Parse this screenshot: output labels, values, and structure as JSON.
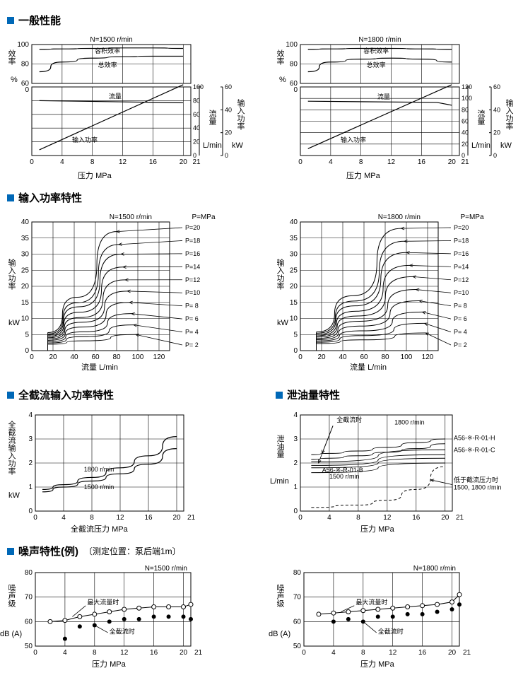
{
  "sections": {
    "general": {
      "title": "一般性能"
    },
    "input_power": {
      "title": "输入功率特性"
    },
    "full_cutoff": {
      "title": "全截流输入功率特性"
    },
    "leakage": {
      "title": "泄油量特性"
    },
    "noise": {
      "title": "噪声特性(例)",
      "note": "〔测定位置：泵后端1m〕"
    }
  },
  "general_chart": {
    "rpm_left": "N=1500 r/min",
    "rpm_right": "N=1800 r/min",
    "y1_label_v": "效率",
    "y1_unit": "%",
    "y1_ticks": [
      0,
      60,
      80,
      100
    ],
    "y2_label_v": "流量",
    "y2_unit": "L/min",
    "y2_ticks_left": [
      0,
      20,
      40,
      60,
      80,
      100
    ],
    "y2_ticks_right": [
      0,
      20,
      40,
      60,
      80,
      100,
      120
    ],
    "y3_label_v": "输入功率",
    "y3_unit": "kW",
    "y3_ticks": [
      0,
      20,
      40,
      60
    ],
    "x_label": "压力",
    "x_unit": "MPa",
    "x_max_note": "21",
    "x_ticks": [
      0,
      4,
      8,
      12,
      16,
      20
    ],
    "curve_labels": {
      "vol_eff": "容积效率",
      "total_eff": "总效率",
      "flow": "流量",
      "input_power": "输入功率"
    },
    "eff_left": {
      "vol": [
        [
          1,
          95
        ],
        [
          4,
          95.5
        ],
        [
          8,
          96
        ],
        [
          12,
          96.5
        ],
        [
          16,
          96.5
        ],
        [
          20,
          96
        ]
      ],
      "tot": [
        [
          1,
          72
        ],
        [
          4,
          82
        ],
        [
          8,
          86
        ],
        [
          12,
          87.5
        ],
        [
          16,
          88
        ],
        [
          20,
          88
        ]
      ]
    },
    "flow_left": [
      [
        1,
        80
      ],
      [
        20,
        77
      ]
    ],
    "power_left": [
      [
        1,
        5
      ],
      [
        20,
        62
      ]
    ],
    "eff_right": {
      "vol": [
        [
          1,
          95
        ],
        [
          4,
          95.5
        ],
        [
          8,
          96
        ],
        [
          12,
          96
        ],
        [
          16,
          95.5
        ],
        [
          20,
          95
        ]
      ],
      "tot": [
        [
          1,
          72
        ],
        [
          4,
          82
        ],
        [
          8,
          85
        ],
        [
          12,
          86
        ],
        [
          16,
          85
        ],
        [
          20,
          82
        ]
      ]
    },
    "flow_right": [
      [
        1,
        95
      ],
      [
        18,
        93
      ],
      [
        20,
        88
      ]
    ],
    "power_right": [
      [
        1,
        6
      ],
      [
        20,
        62
      ]
    ]
  },
  "input_power_chart": {
    "rpm_left": "N=1500 r/min",
    "rpm_right": "N=1800 r/min",
    "p_mpa": "P=MPa",
    "y_label_v": "输入功率",
    "y_unit": "kW",
    "y_ticks": [
      0,
      5,
      10,
      15,
      20,
      25,
      30,
      35,
      40
    ],
    "x_label": "流量",
    "x_unit": "L/min",
    "x_ticks": [
      0,
      20,
      40,
      60,
      80,
      100,
      120
    ],
    "p_series_labels": [
      "P=20",
      "P=18",
      "P=16",
      "P=14",
      "P=12",
      "P=10",
      "P= 8",
      "P= 6",
      "P= 4",
      "P= 2"
    ],
    "p_series_left": [
      [
        [
          15,
          5.6
        ],
        [
          80,
          37
        ]
      ],
      [
        [
          15,
          5.2
        ],
        [
          82,
          33
        ]
      ],
      [
        [
          15,
          4.8
        ],
        [
          84,
          30
        ]
      ],
      [
        [
          15,
          4.4
        ],
        [
          86,
          26
        ]
      ],
      [
        [
          15,
          4.0
        ],
        [
          88,
          22
        ]
      ],
      [
        [
          15,
          3.6
        ],
        [
          90,
          18.5
        ]
      ],
      [
        [
          15,
          3.2
        ],
        [
          92,
          15
        ]
      ],
      [
        [
          15,
          2.8
        ],
        [
          94,
          11.5
        ]
      ],
      [
        [
          15,
          2.4
        ],
        [
          96,
          8
        ]
      ],
      [
        [
          15,
          2.0
        ],
        [
          98,
          5
        ]
      ]
    ],
    "p_series_right": [
      [
        [
          15,
          5.8
        ],
        [
          95,
          38
        ]
      ],
      [
        [
          15,
          5.4
        ],
        [
          98,
          34
        ]
      ],
      [
        [
          15,
          5.0
        ],
        [
          100,
          30.5
        ]
      ],
      [
        [
          15,
          4.6
        ],
        [
          103,
          26.5
        ]
      ],
      [
        [
          15,
          4.2
        ],
        [
          106,
          23
        ]
      ],
      [
        [
          15,
          3.8
        ],
        [
          109,
          19
        ]
      ],
      [
        [
          15,
          3.4
        ],
        [
          112,
          15.5
        ]
      ],
      [
        [
          15,
          3.0
        ],
        [
          115,
          12
        ]
      ],
      [
        [
          15,
          2.6
        ],
        [
          117,
          8.5
        ]
      ],
      [
        [
          15,
          2.2
        ],
        [
          118,
          5.5
        ]
      ]
    ]
  },
  "full_cutoff_chart": {
    "y_label_v": "全截流输入功率",
    "y_unit": "kW",
    "y_ticks": [
      0,
      1,
      2,
      3,
      4
    ],
    "x_label": "全截流压力",
    "x_unit": "MPa",
    "x_ticks": [
      0,
      4,
      8,
      12,
      16,
      20
    ],
    "x_max_note": "21",
    "curve_labels": {
      "c1": "1800 r/min",
      "c2": "1500 r/min"
    },
    "c1": [
      [
        1,
        0.9
      ],
      [
        4,
        1.1
      ],
      [
        8,
        1.4
      ],
      [
        12,
        1.8
      ],
      [
        16,
        2.3
      ],
      [
        20,
        3.1
      ]
    ],
    "c2": [
      [
        1,
        0.8
      ],
      [
        4,
        1.0
      ],
      [
        8,
        1.25
      ],
      [
        12,
        1.55
      ],
      [
        16,
        1.95
      ],
      [
        20,
        2.6
      ]
    ]
  },
  "leakage_chart": {
    "y_label_v": "泄油量",
    "y_unit": "L/min",
    "y_ticks": [
      0,
      1,
      2,
      3,
      4
    ],
    "x_label": "压力",
    "x_unit": "MPa",
    "x_ticks": [
      0,
      4,
      8,
      12,
      16,
      20
    ],
    "x_max_note": "21",
    "labels": {
      "full_cut": "全截流时",
      "rpm1800": "1800 r/min",
      "rpm1500": "1500 r/min",
      "mH": "A56-※-R-01-H",
      "mC": "A56-※-R-01-C",
      "mB": "A56-※-R-01-B",
      "below": "低于截流压力时\n1500, 1800 r/min"
    },
    "solid_curves": [
      [
        [
          1.5,
          2.35
        ],
        [
          4,
          2.4
        ],
        [
          8,
          2.5
        ],
        [
          12,
          2.65
        ],
        [
          16,
          2.85
        ],
        [
          20,
          3.0
        ]
      ],
      [
        [
          1.5,
          2.15
        ],
        [
          4,
          2.2
        ],
        [
          8,
          2.3
        ],
        [
          12,
          2.45
        ],
        [
          16,
          2.6
        ],
        [
          20,
          2.8
        ]
      ],
      [
        [
          1.5,
          2.05
        ],
        [
          20,
          2.55
        ]
      ],
      [
        [
          1.5,
          1.9
        ],
        [
          20,
          2.35
        ]
      ],
      [
        [
          1.5,
          1.8
        ],
        [
          20,
          2.2
        ]
      ],
      [
        [
          1.5,
          1.6
        ],
        [
          20,
          2.0
        ]
      ]
    ],
    "dash_curve": [
      [
        1.5,
        0.15
      ],
      [
        8,
        0.25
      ],
      [
        12,
        0.45
      ],
      [
        16,
        0.9
      ],
      [
        20,
        1.85
      ]
    ]
  },
  "noise_chart": {
    "rpm_left": "N=1500 r/min",
    "rpm_right": "N=1800 r/min",
    "y_label_v": "噪声级",
    "y_unit": "dB (A)",
    "y_ticks": [
      50,
      60,
      70,
      80
    ],
    "x_label": "压力",
    "x_unit": "MPa",
    "x_ticks": [
      0,
      4,
      8,
      12,
      16,
      20
    ],
    "x_max_note": "21",
    "labels": {
      "max_flow": "最大流量时",
      "full_cut": "全截流时"
    },
    "left_o": [
      [
        2,
        60
      ],
      [
        4,
        60.5
      ],
      [
        6,
        62
      ],
      [
        8,
        63
      ],
      [
        10,
        64
      ],
      [
        12,
        65
      ],
      [
        14,
        65.5
      ],
      [
        16,
        66
      ],
      [
        18,
        66
      ],
      [
        20,
        66
      ],
      [
        21,
        67
      ]
    ],
    "left_f": [
      [
        4,
        53
      ],
      [
        6,
        58
      ],
      [
        8,
        58.5
      ],
      [
        10,
        60
      ],
      [
        12,
        61
      ],
      [
        14,
        61
      ],
      [
        16,
        62
      ],
      [
        18,
        62
      ],
      [
        20,
        62
      ],
      [
        21,
        61
      ]
    ],
    "right_o": [
      [
        2,
        63
      ],
      [
        4,
        63.5
      ],
      [
        6,
        64
      ],
      [
        8,
        64.5
      ],
      [
        10,
        65
      ],
      [
        12,
        65.5
      ],
      [
        14,
        66
      ],
      [
        16,
        66.5
      ],
      [
        18,
        67
      ],
      [
        20,
        68
      ],
      [
        21,
        71
      ]
    ],
    "right_f": [
      [
        4,
        60
      ],
      [
        6,
        61
      ],
      [
        8,
        60
      ],
      [
        10,
        62
      ],
      [
        12,
        62
      ],
      [
        14,
        63
      ],
      [
        16,
        63
      ],
      [
        18,
        64
      ],
      [
        20,
        65
      ],
      [
        21,
        67
      ]
    ]
  },
  "colors": {
    "accent": "#0068b7",
    "fg": "#000",
    "bg": "#fff",
    "grid": "#000"
  }
}
